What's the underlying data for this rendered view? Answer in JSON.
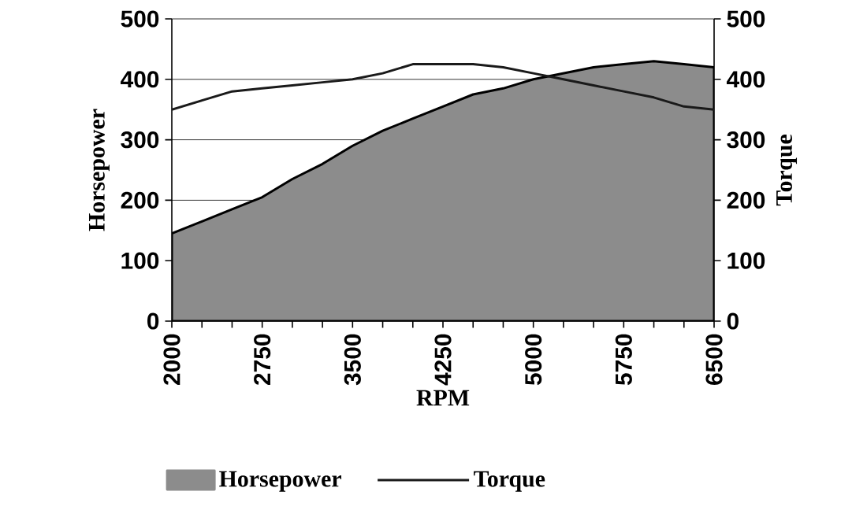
{
  "chart_data": {
    "type": "area",
    "xlabel": "RPM",
    "ylabel": "Horsepower",
    "y2label": "Torque",
    "x": [
      2000,
      2250,
      2500,
      2750,
      3000,
      3250,
      3500,
      3750,
      4000,
      4250,
      4500,
      4750,
      5000,
      5250,
      5500,
      5750,
      6000,
      6250,
      6500
    ],
    "xlim": [
      2000,
      6500
    ],
    "xticks": [
      2000,
      {
        "value": 2250,
        "label": null
      },
      {
        "value": 2500,
        "label": null
      },
      2750,
      {
        "value": 3000,
        "label": null
      },
      {
        "value": 3250,
        "label": null
      },
      3500,
      {
        "value": 3750,
        "label": null
      },
      {
        "value": 4000,
        "label": null
      },
      4250,
      {
        "value": 4500,
        "label": null
      },
      {
        "value": 4750,
        "label": null
      },
      5000,
      {
        "value": 5250,
        "label": null
      },
      {
        "value": 5500,
        "label": null
      },
      5750,
      {
        "value": 6000,
        "label": null
      },
      {
        "value": 6250,
        "label": null
      },
      6500
    ],
    "ylim": [
      0,
      500
    ],
    "yticks": [
      0,
      100,
      200,
      300,
      400,
      500
    ],
    "y2lim": [
      0,
      500
    ],
    "y2ticks": [
      0,
      100,
      200,
      300,
      400,
      500
    ],
    "grid": "y",
    "legend": "bottom",
    "series": [
      {
        "name": "Horsepower",
        "color": "#8c8c8c",
        "values": [
          145,
          165,
          185,
          205,
          235,
          260,
          290,
          315,
          335,
          355,
          375,
          385,
          400,
          410,
          420,
          425,
          430,
          425,
          420
        ]
      },
      {
        "name": "Torque",
        "type": "line",
        "axis": "y2",
        "color": "#1a1a1a",
        "values": [
          350,
          365,
          380,
          385,
          390,
          395,
          400,
          410,
          425,
          425,
          425,
          420,
          410,
          400,
          390,
          380,
          370,
          355,
          350
        ]
      }
    ]
  }
}
